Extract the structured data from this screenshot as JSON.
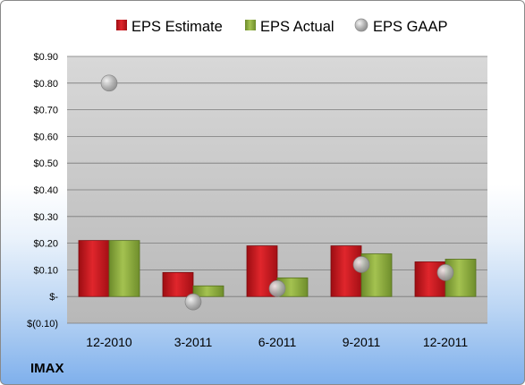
{
  "chart_data": {
    "type": "bar",
    "categories": [
      "12-2010",
      "3-2011",
      "6-2011",
      "9-2011",
      "12-2011"
    ],
    "series": [
      {
        "name": "EPS Estimate",
        "kind": "bar",
        "color": "#c8141c",
        "values": [
          0.21,
          0.09,
          0.19,
          0.19,
          0.13
        ]
      },
      {
        "name": "EPS Actual",
        "kind": "bar",
        "color": "#8aaa3c",
        "values": [
          0.21,
          0.04,
          0.07,
          0.16,
          0.14
        ]
      },
      {
        "name": "EPS GAAP",
        "kind": "scatter",
        "color": "#b4b4b4",
        "values": [
          0.8,
          -0.02,
          0.03,
          0.12,
          0.09
        ]
      }
    ],
    "y_ticks": [
      {
        "value": 0.9,
        "label": "$0.90"
      },
      {
        "value": 0.8,
        "label": "$0.80"
      },
      {
        "value": 0.7,
        "label": "$0.70"
      },
      {
        "value": 0.6,
        "label": "$0.60"
      },
      {
        "value": 0.5,
        "label": "$0.50"
      },
      {
        "value": 0.4,
        "label": "$0.40"
      },
      {
        "value": 0.3,
        "label": "$0.30"
      },
      {
        "value": 0.2,
        "label": "$0.20"
      },
      {
        "value": 0.1,
        "label": "$0.10"
      },
      {
        "value": 0.0,
        "label": "$-"
      },
      {
        "value": -0.1,
        "label": "$(0.10)"
      }
    ],
    "ylim": [
      -0.1,
      0.9
    ],
    "grid": true,
    "legend_position": "top",
    "title": "",
    "xlabel": "",
    "ylabel": ""
  },
  "brand_label": "IMAX"
}
